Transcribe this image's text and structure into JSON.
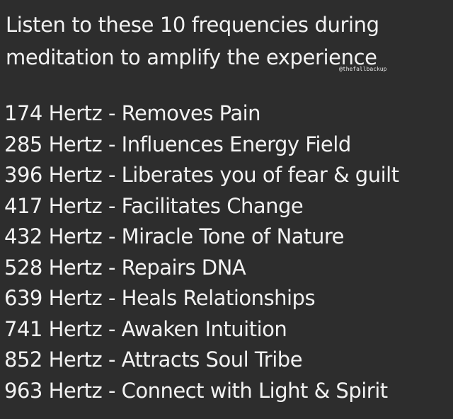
{
  "heading": {
    "line1": "Listen to these 10 frequencies during",
    "line2": "meditation to amplify the experience"
  },
  "watermark": "@thefallbackup",
  "frequencies": [
    {
      "text": "174 Hertz - Removes Pain"
    },
    {
      "text": "285 Hertz - Influences Energy Field"
    },
    {
      "text": "396 Hertz - Liberates you of fear & guilt"
    },
    {
      "text": "417 Hertz - Facilitates Change"
    },
    {
      "text": "432 Hertz - Miracle Tone of Nature"
    },
    {
      "text": "528 Hertz - Repairs DNA"
    },
    {
      "text": "639 Hertz - Heals Relationships"
    },
    {
      "text": "741 Hertz - Awaken Intuition"
    },
    {
      "text": "852 Hertz - Attracts Soul Tribe"
    },
    {
      "text": "963 Hertz - Connect with Light & Spirit"
    }
  ]
}
